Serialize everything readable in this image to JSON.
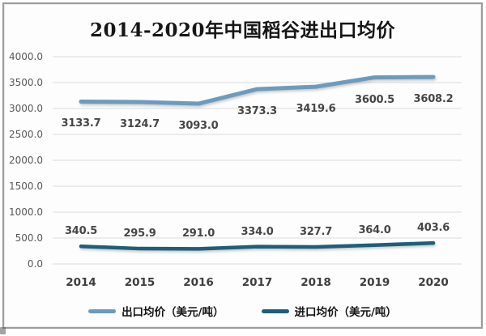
{
  "title": "2014-2020年中国稻谷进出口均价",
  "colors": {
    "export_line": "#6d9bbd",
    "import_line": "#1d5f7a",
    "grid": "#dcdcdc",
    "frame_border": "#9c9c9c",
    "axis_text": "#595959",
    "tick_text": "#3d3d3d",
    "data_label_text": "#464646"
  },
  "chart_data": {
    "type": "line",
    "title": "2014-2020年中国稻谷进出口均价",
    "categories": [
      "2014",
      "2015",
      "2016",
      "2017",
      "2018",
      "2019",
      "2020"
    ],
    "series": [
      {
        "name": "出口均价（美元/吨）",
        "values": [
          3133.7,
          3124.7,
          3093.0,
          3373.3,
          3419.6,
          3600.5,
          3608.2
        ],
        "color": "#6d9bbd",
        "label_side": "below"
      },
      {
        "name": "进口均价（美元/吨）",
        "values": [
          340.5,
          295.9,
          291.0,
          334.0,
          327.7,
          364.0,
          403.6
        ],
        "color": "#1d5f7a",
        "label_side": "above"
      }
    ],
    "ylim": [
      0,
      4000
    ],
    "ytick_step": 500,
    "yticks": [
      "0.0",
      "500.0",
      "1000.0",
      "1500.0",
      "2000.0",
      "2500.0",
      "3000.0",
      "3500.0",
      "4000.0"
    ],
    "grid": true,
    "legend_position": "bottom",
    "data_labels": true
  },
  "legend": {
    "items": [
      {
        "label": "出口均价（美元/吨）",
        "color": "#6d9bbd"
      },
      {
        "label": "进口均价（美元/吨）",
        "color": "#1d5f7a"
      }
    ]
  }
}
